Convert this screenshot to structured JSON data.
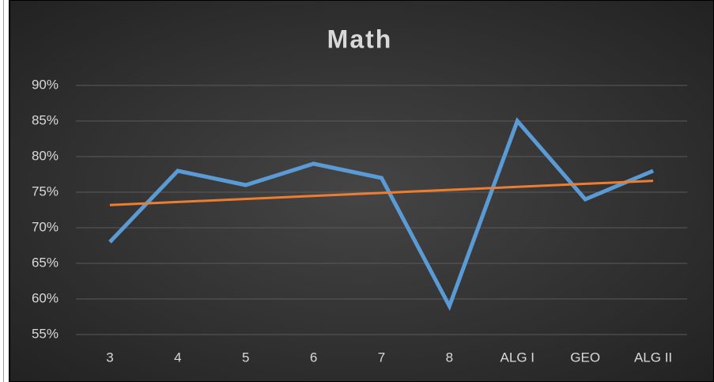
{
  "chart_data": {
    "type": "line",
    "title": "Math",
    "categories": [
      "3",
      "4",
      "5",
      "6",
      "7",
      "8",
      "ALG I",
      "GEO",
      "ALG II"
    ],
    "series": [
      {
        "color": "#5b9bd5",
        "values": [
          68,
          78,
          76,
          79,
          77,
          59,
          85,
          74,
          78
        ]
      }
    ],
    "trendline": {
      "color": "#ed7d31",
      "values": [
        73.2,
        76.6
      ]
    },
    "ylim": [
      55,
      90
    ],
    "yticks": [
      {
        "value": 55,
        "label": "55%"
      },
      {
        "value": 60,
        "label": "60%"
      },
      {
        "value": 65,
        "label": "65%"
      },
      {
        "value": 70,
        "label": "70%"
      },
      {
        "value": 75,
        "label": "75%"
      },
      {
        "value": 80,
        "label": "80%"
      },
      {
        "value": 85,
        "label": "85%"
      },
      {
        "value": 90,
        "label": "90%"
      }
    ],
    "grid": true
  }
}
